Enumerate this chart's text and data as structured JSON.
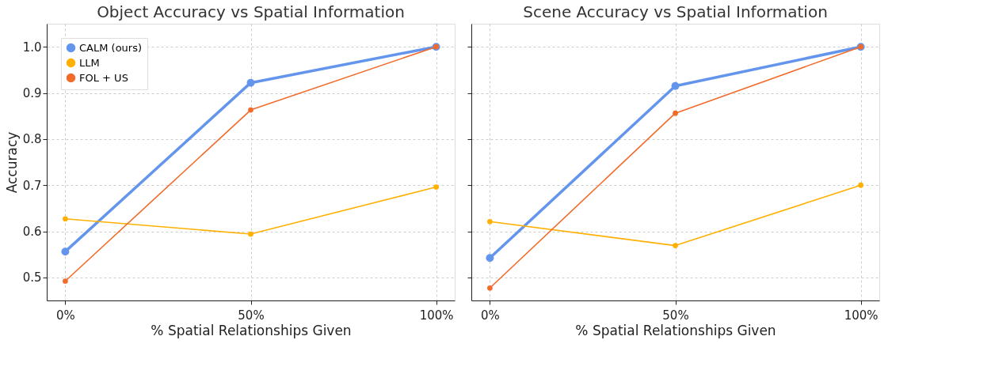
{
  "chart_data": [
    {
      "type": "line",
      "title": "Object Accuracy vs Spatial Information",
      "xlabel": "% Spatial Relationships Given",
      "ylabel": "Accuracy",
      "categories": [
        "0%",
        "50%",
        "100%"
      ],
      "series": [
        {
          "name": "CALM (ours)",
          "color": "#6495ed",
          "values": [
            0.556,
            0.922,
            1.0
          ]
        },
        {
          "name": "LLM",
          "color": "#ffb000",
          "values": [
            0.627,
            0.594,
            0.696
          ]
        },
        {
          "name": "FOL + US",
          "color": "#f26b2a",
          "values": [
            0.492,
            0.863,
            1.0
          ]
        }
      ],
      "ylim": [
        0.45,
        1.05
      ],
      "yticks": [
        {
          "value": 0.5,
          "label": "0.5"
        },
        0.6,
        0.7,
        0.8,
        0.9,
        {
          "value": 1.0,
          "label": "1.0"
        }
      ],
      "grid": true,
      "legend": "top left",
      "marker": "circle"
    },
    {
      "type": "line",
      "title": "Scene Accuracy vs Spatial Information",
      "xlabel": "% Spatial Relationships Given",
      "categories": [
        "0%",
        "50%",
        "100%"
      ],
      "series": [
        {
          "name": "CALM (ours)",
          "color": "#6495ed",
          "values": [
            0.542,
            0.915,
            1.0
          ]
        },
        {
          "name": "LLM",
          "color": "#ffb000",
          "values": [
            0.621,
            0.569,
            0.7
          ]
        },
        {
          "name": "FOL + US",
          "color": "#f26b2a",
          "values": [
            0.477,
            0.856,
            1.0
          ]
        }
      ],
      "ylim": [
        0.45,
        1.05
      ],
      "yticks": [
        {
          "value": 0.5,
          "label": null
        },
        {
          "value": 0.6,
          "label": null
        },
        {
          "value": 0.7,
          "label": null
        },
        {
          "value": 0.8,
          "label": null
        },
        {
          "value": 0.9,
          "label": null
        },
        {
          "value": 1.0,
          "label": null
        }
      ],
      "grid": true,
      "legend": "top left",
      "marker": "circle",
      "tick_labels": "x"
    }
  ]
}
